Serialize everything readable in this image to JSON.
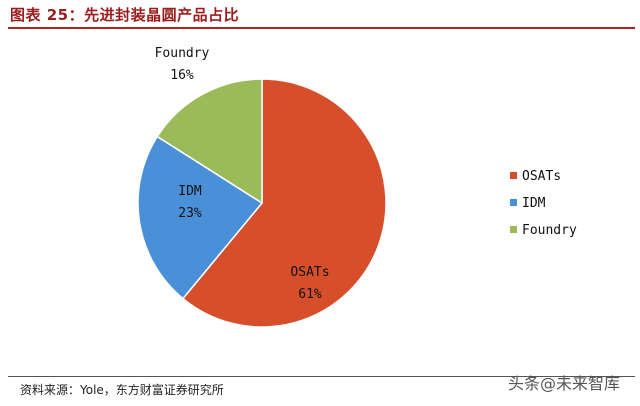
{
  "header": {
    "title": "图表 25：先进封装晶圆产品占比"
  },
  "footer": {
    "source": "资料来源：Yole，东方财富证券研究所",
    "watermark": "头条@未来智库"
  },
  "colors": {
    "title": "#9b1c1c",
    "rule": "#b22222"
  },
  "chart_data": {
    "type": "pie",
    "title": "",
    "slices": [
      {
        "label": "OSATs",
        "value": 61,
        "percent_label": "61%",
        "color": "#d64f2a"
      },
      {
        "label": "IDM",
        "value": 23,
        "percent_label": "23%",
        "color": "#4a90d9"
      },
      {
        "label": "Foundry",
        "value": 16,
        "percent_label": "16%",
        "color": "#9bbb59"
      }
    ],
    "legend": {
      "placement": "right",
      "entries": [
        "OSATs",
        "IDM",
        "Foundry"
      ]
    }
  }
}
